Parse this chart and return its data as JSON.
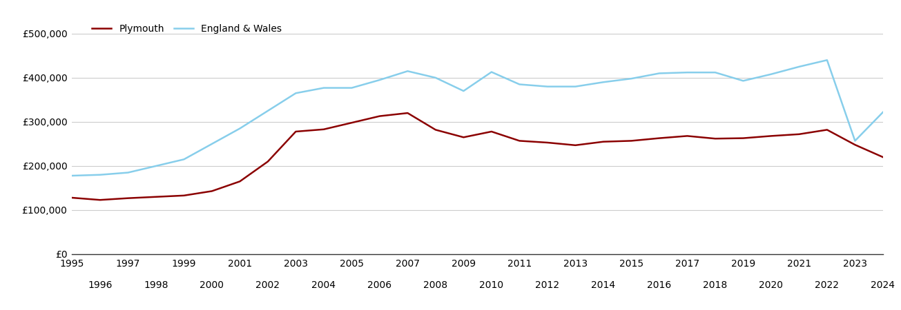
{
  "years": [
    1995,
    1996,
    1997,
    1998,
    1999,
    2000,
    2001,
    2002,
    2003,
    2004,
    2005,
    2006,
    2007,
    2008,
    2009,
    2010,
    2011,
    2012,
    2013,
    2014,
    2015,
    2016,
    2017,
    2018,
    2019,
    2020,
    2021,
    2022,
    2023,
    2024
  ],
  "plymouth": [
    128000,
    123000,
    127000,
    130000,
    133000,
    143000,
    165000,
    210000,
    278000,
    283000,
    298000,
    313000,
    320000,
    282000,
    265000,
    278000,
    257000,
    253000,
    247000,
    255000,
    257000,
    263000,
    268000,
    262000,
    263000,
    268000,
    272000,
    282000,
    248000,
    220000
  ],
  "england_wales": [
    178000,
    180000,
    185000,
    200000,
    215000,
    250000,
    285000,
    325000,
    365000,
    377000,
    377000,
    395000,
    415000,
    400000,
    370000,
    413000,
    385000,
    380000,
    380000,
    390000,
    398000,
    410000,
    412000,
    412000,
    393000,
    408000,
    425000,
    440000,
    257000,
    322000
  ],
  "plymouth_color": "#8B0000",
  "england_wales_color": "#87CEEB",
  "background_color": "#ffffff",
  "grid_color": "#cccccc",
  "ylim": [
    0,
    520000
  ],
  "yticks": [
    0,
    100000,
    200000,
    300000,
    400000,
    500000
  ],
  "ytick_labels": [
    "£0",
    "£100,000",
    "£200,000",
    "£300,000",
    "£400,000",
    "£500,000"
  ],
  "legend_labels": [
    "Plymouth",
    "England & Wales"
  ],
  "linewidth": 1.8
}
